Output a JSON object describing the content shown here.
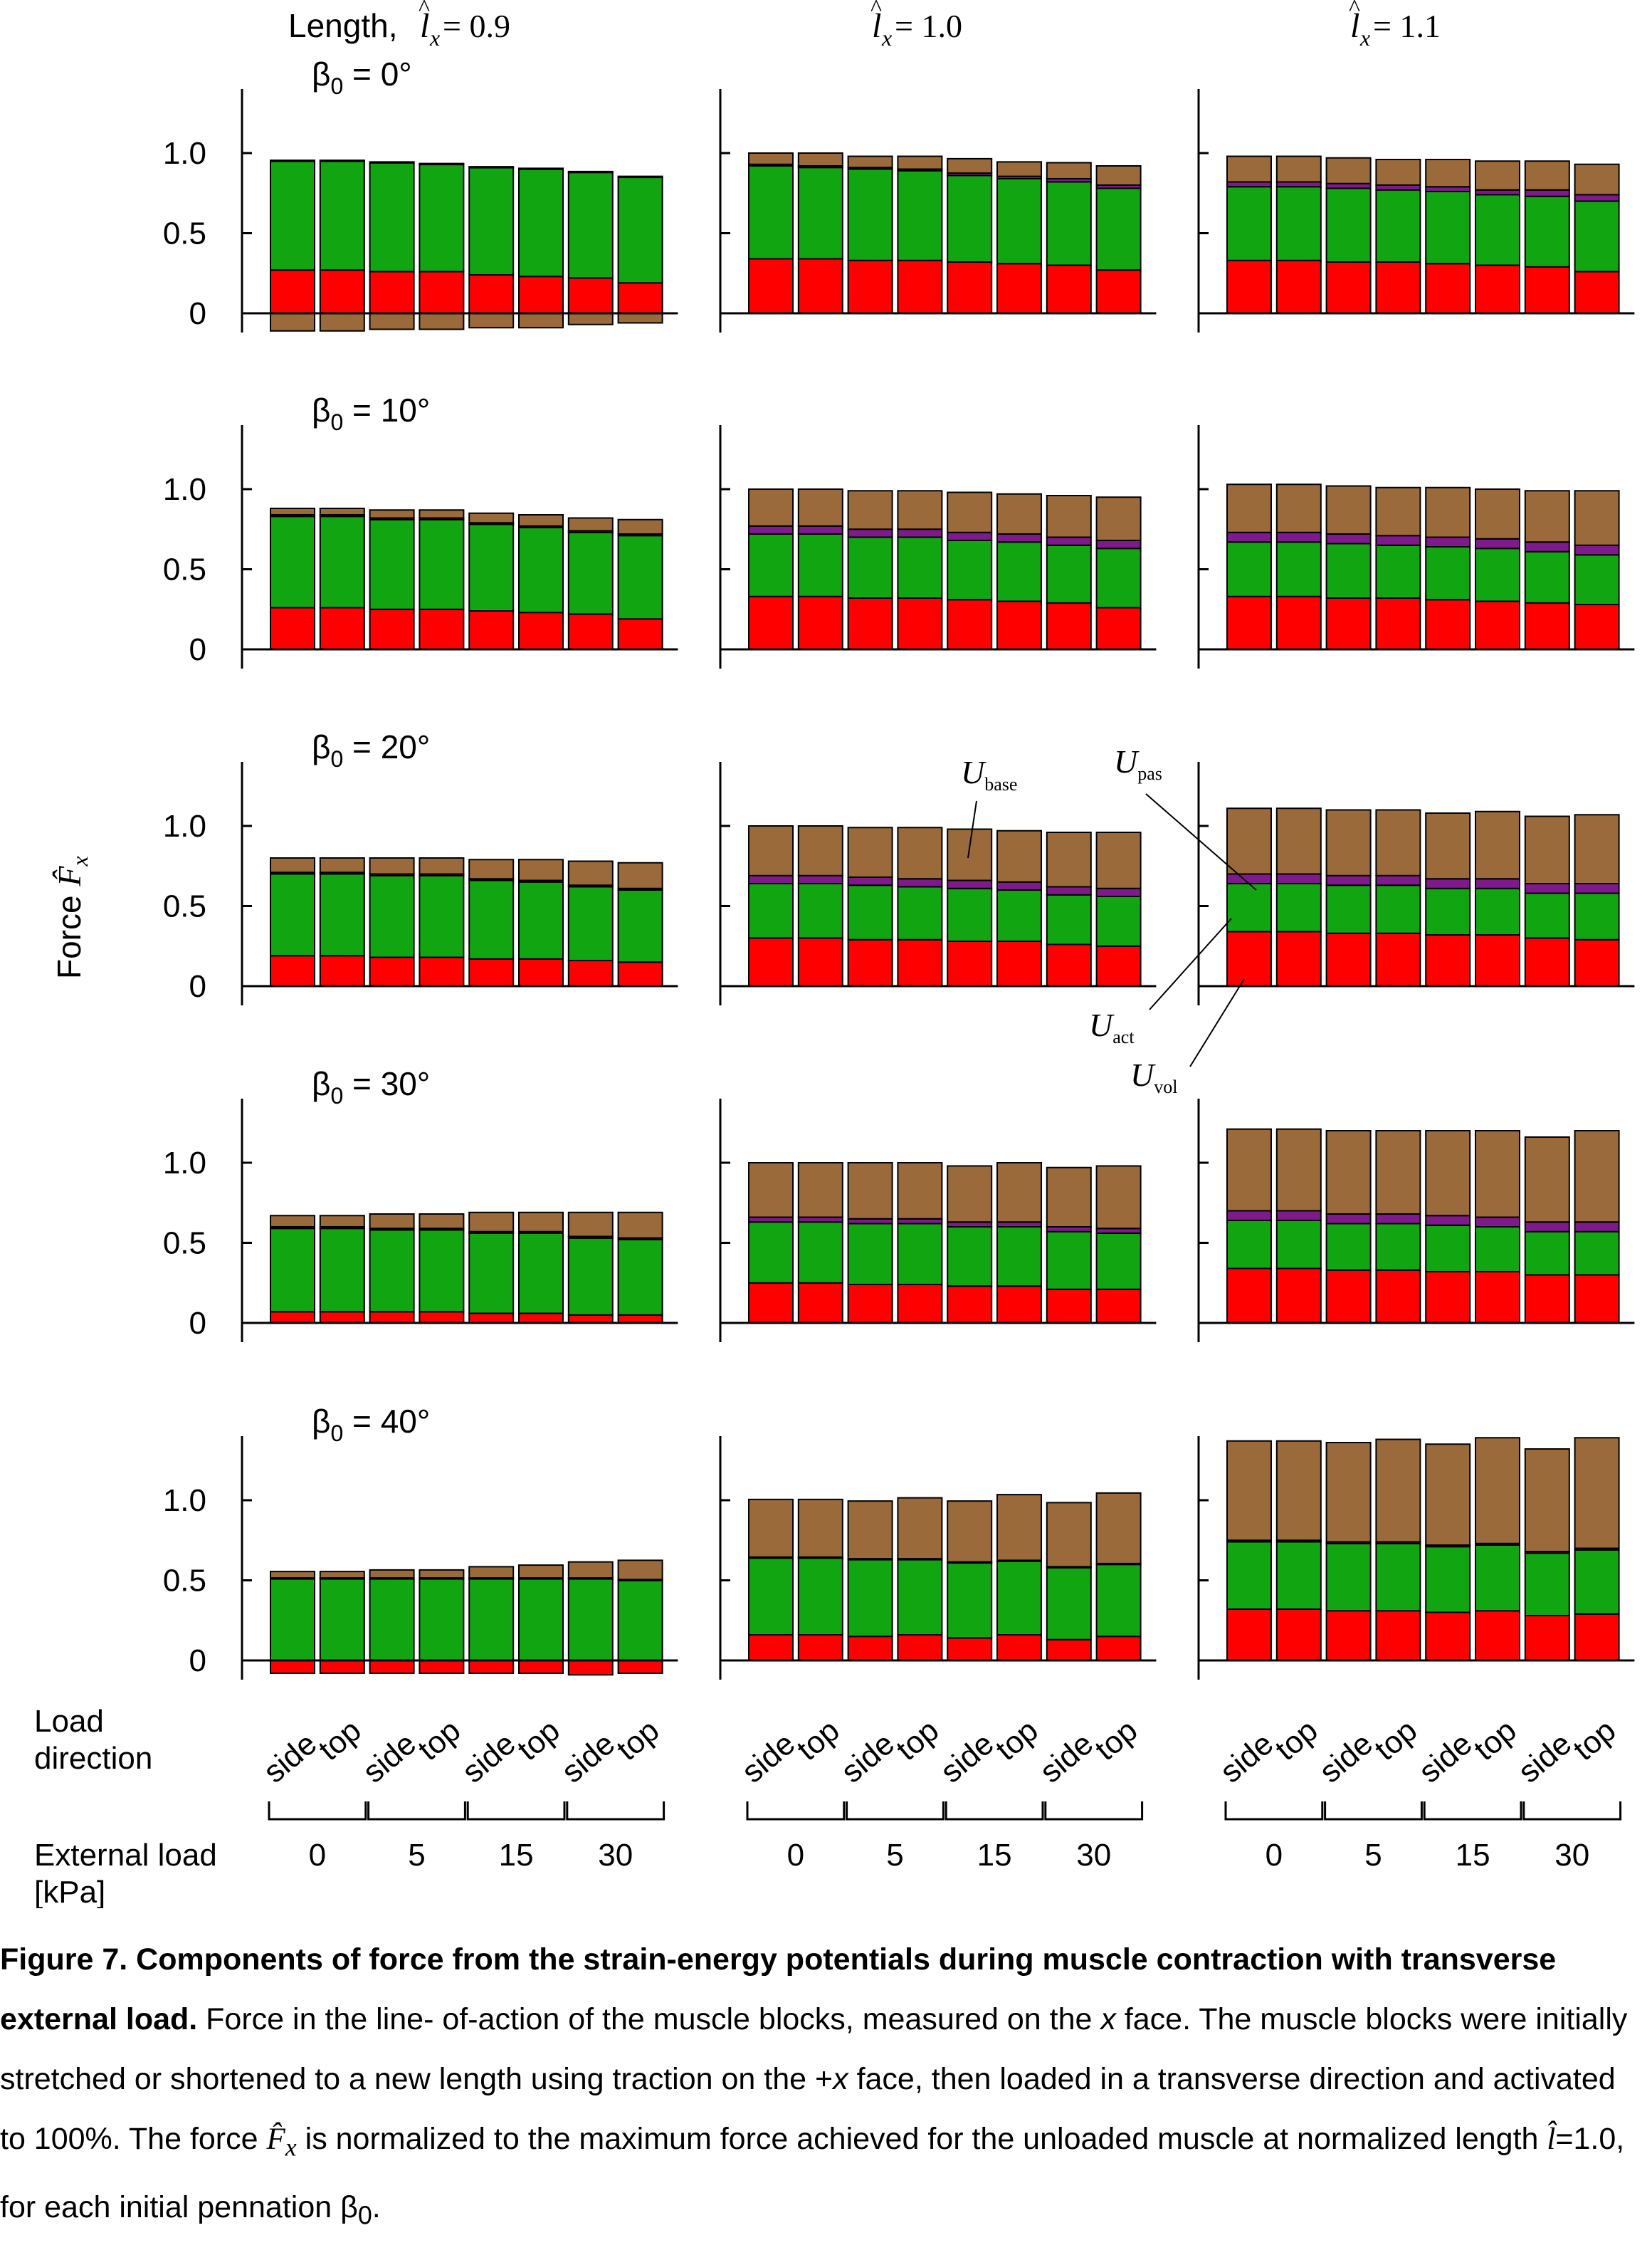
{
  "figure": {
    "column_headers": [
      {
        "prefix": "Length, ",
        "var": "l",
        "sub": "x",
        "value": " = 0.9"
      },
      {
        "prefix": "",
        "var": "l",
        "sub": "x",
        "value": " = 1.0"
      },
      {
        "prefix": "",
        "var": "l",
        "sub": "x",
        "value": " = 1.1"
      }
    ],
    "row_labels": [
      "β0 = 0°",
      "β0 = 10°",
      "β0 = 20°",
      "β0 = 30°",
      "β0 = 40°"
    ],
    "y_axis_label": "Force F̂x",
    "y_tick_labels": [
      "0",
      "0.5",
      "1.0"
    ],
    "load_direction_label": [
      "Load",
      "direction"
    ],
    "external_load_label": [
      "External load",
      "[kPa]"
    ],
    "bar_direction_labels": [
      "side",
      "top"
    ],
    "load_group_labels": [
      "0",
      "5",
      "15",
      "30"
    ],
    "annotations": [
      {
        "name": "U",
        "sub": "base"
      },
      {
        "name": "U",
        "sub": "pas"
      },
      {
        "name": "U",
        "sub": "act"
      },
      {
        "name": "U",
        "sub": "vol"
      }
    ]
  },
  "colors": {
    "vol": "#ff0000",
    "act": "#11a611",
    "pas": "#7f1a8c",
    "base": "#9a6a3b",
    "outline": "#000000"
  },
  "chart_data": {
    "type": "bar",
    "stacked": true,
    "ylim": [
      -0.1,
      1.4
    ],
    "yticks": [
      0,
      0.5,
      1.0
    ],
    "series_order": [
      "vol",
      "act",
      "pas",
      "base"
    ],
    "series": [
      {
        "key": "vol",
        "name": "Uvol"
      },
      {
        "key": "act",
        "name": "Uact"
      },
      {
        "key": "pas",
        "name": "Upas"
      },
      {
        "key": "base",
        "name": "Ubase"
      }
    ],
    "categories": [
      "0 side",
      "0 top",
      "5 side",
      "5 top",
      "15 side",
      "15 top",
      "30 side",
      "30 top"
    ],
    "panels": [
      {
        "row": "β0 = 0°",
        "col": "l = 0.9",
        "vol": [
          0.27,
          0.27,
          0.26,
          0.26,
          0.24,
          0.23,
          0.22,
          0.19
        ],
        "act": [
          0.68,
          0.68,
          0.68,
          0.67,
          0.67,
          0.67,
          0.66,
          0.66
        ],
        "pas": [
          0.005,
          0.005,
          0.005,
          0.005,
          0.005,
          0.005,
          0.005,
          0.005
        ],
        "base": [
          -0.11,
          -0.11,
          -0.1,
          -0.1,
          -0.09,
          -0.09,
          -0.07,
          -0.06
        ]
      },
      {
        "row": "β0 = 0°",
        "col": "l = 1.0",
        "vol": [
          0.34,
          0.34,
          0.33,
          0.33,
          0.32,
          0.31,
          0.3,
          0.27
        ],
        "act": [
          0.58,
          0.57,
          0.57,
          0.56,
          0.54,
          0.53,
          0.52,
          0.51
        ],
        "pas": [
          0.01,
          0.01,
          0.01,
          0.01,
          0.015,
          0.015,
          0.02,
          0.02
        ],
        "base": [
          0.07,
          0.08,
          0.07,
          0.08,
          0.09,
          0.09,
          0.1,
          0.12
        ]
      },
      {
        "row": "β0 = 0°",
        "col": "l = 1.1",
        "vol": [
          0.33,
          0.33,
          0.32,
          0.32,
          0.31,
          0.3,
          0.29,
          0.26
        ],
        "act": [
          0.46,
          0.46,
          0.46,
          0.45,
          0.45,
          0.44,
          0.44,
          0.44
        ],
        "pas": [
          0.03,
          0.03,
          0.03,
          0.03,
          0.03,
          0.03,
          0.04,
          0.04
        ],
        "base": [
          0.16,
          0.16,
          0.16,
          0.16,
          0.17,
          0.18,
          0.18,
          0.19
        ]
      },
      {
        "row": "β0 = 10°",
        "col": "l = 0.9",
        "vol": [
          0.26,
          0.26,
          0.25,
          0.25,
          0.24,
          0.23,
          0.22,
          0.19
        ],
        "act": [
          0.57,
          0.57,
          0.56,
          0.56,
          0.54,
          0.53,
          0.51,
          0.52
        ],
        "pas": [
          0.01,
          0.01,
          0.01,
          0.01,
          0.01,
          0.01,
          0.01,
          0.01
        ],
        "base": [
          0.04,
          0.04,
          0.05,
          0.05,
          0.06,
          0.07,
          0.08,
          0.09
        ]
      },
      {
        "row": "β0 = 10°",
        "col": "l = 1.0",
        "vol": [
          0.33,
          0.33,
          0.32,
          0.32,
          0.31,
          0.3,
          0.29,
          0.26
        ],
        "act": [
          0.39,
          0.39,
          0.38,
          0.38,
          0.37,
          0.37,
          0.36,
          0.37
        ],
        "pas": [
          0.05,
          0.05,
          0.05,
          0.05,
          0.05,
          0.05,
          0.05,
          0.05
        ],
        "base": [
          0.23,
          0.23,
          0.24,
          0.24,
          0.25,
          0.25,
          0.26,
          0.27
        ]
      },
      {
        "row": "β0 = 10°",
        "col": "l = 1.1",
        "vol": [
          0.33,
          0.33,
          0.32,
          0.32,
          0.31,
          0.3,
          0.29,
          0.28
        ],
        "act": [
          0.34,
          0.34,
          0.34,
          0.33,
          0.33,
          0.33,
          0.32,
          0.31
        ],
        "pas": [
          0.06,
          0.06,
          0.06,
          0.06,
          0.06,
          0.06,
          0.06,
          0.06
        ],
        "base": [
          0.3,
          0.3,
          0.3,
          0.3,
          0.31,
          0.31,
          0.32,
          0.34
        ]
      },
      {
        "row": "β0 = 20°",
        "col": "l = 0.9",
        "vol": [
          0.19,
          0.19,
          0.18,
          0.18,
          0.17,
          0.17,
          0.16,
          0.15
        ],
        "act": [
          0.51,
          0.51,
          0.51,
          0.51,
          0.49,
          0.48,
          0.46,
          0.45
        ],
        "pas": [
          0.01,
          0.01,
          0.01,
          0.01,
          0.01,
          0.01,
          0.01,
          0.01
        ],
        "base": [
          0.09,
          0.09,
          0.1,
          0.1,
          0.12,
          0.13,
          0.15,
          0.16
        ]
      },
      {
        "row": "β0 = 20°",
        "col": "l = 1.0",
        "vol": [
          0.3,
          0.3,
          0.29,
          0.29,
          0.28,
          0.28,
          0.26,
          0.25
        ],
        "act": [
          0.34,
          0.34,
          0.34,
          0.33,
          0.33,
          0.32,
          0.31,
          0.31
        ],
        "pas": [
          0.05,
          0.05,
          0.05,
          0.05,
          0.05,
          0.05,
          0.05,
          0.05
        ],
        "base": [
          0.31,
          0.31,
          0.31,
          0.32,
          0.32,
          0.32,
          0.34,
          0.35
        ]
      },
      {
        "row": "β0 = 20°",
        "col": "l = 1.1",
        "vol": [
          0.34,
          0.34,
          0.33,
          0.33,
          0.32,
          0.32,
          0.3,
          0.29
        ],
        "act": [
          0.3,
          0.3,
          0.3,
          0.3,
          0.29,
          0.29,
          0.28,
          0.29
        ],
        "pas": [
          0.06,
          0.06,
          0.06,
          0.06,
          0.06,
          0.06,
          0.06,
          0.06
        ],
        "base": [
          0.41,
          0.41,
          0.41,
          0.41,
          0.41,
          0.42,
          0.42,
          0.43
        ]
      },
      {
        "row": "β0 = 30°",
        "col": "l = 0.9",
        "vol": [
          0.07,
          0.07,
          0.07,
          0.07,
          0.06,
          0.06,
          0.05,
          0.05
        ],
        "act": [
          0.52,
          0.52,
          0.51,
          0.51,
          0.5,
          0.5,
          0.48,
          0.47
        ],
        "pas": [
          0.01,
          0.01,
          0.01,
          0.01,
          0.01,
          0.01,
          0.01,
          0.01
        ],
        "base": [
          0.07,
          0.07,
          0.09,
          0.09,
          0.12,
          0.12,
          0.15,
          0.16
        ]
      },
      {
        "row": "β0 = 30°",
        "col": "l = 1.0",
        "vol": [
          0.25,
          0.25,
          0.24,
          0.24,
          0.23,
          0.23,
          0.21,
          0.21
        ],
        "act": [
          0.38,
          0.38,
          0.38,
          0.38,
          0.37,
          0.37,
          0.36,
          0.35
        ],
        "pas": [
          0.03,
          0.03,
          0.03,
          0.03,
          0.03,
          0.03,
          0.03,
          0.03
        ],
        "base": [
          0.34,
          0.34,
          0.35,
          0.35,
          0.35,
          0.37,
          0.37,
          0.39
        ]
      },
      {
        "row": "β0 = 30°",
        "col": "l = 1.1",
        "vol": [
          0.34,
          0.34,
          0.33,
          0.33,
          0.32,
          0.32,
          0.3,
          0.3
        ],
        "act": [
          0.3,
          0.3,
          0.29,
          0.29,
          0.29,
          0.28,
          0.27,
          0.27
        ],
        "pas": [
          0.06,
          0.06,
          0.06,
          0.06,
          0.06,
          0.06,
          0.06,
          0.06
        ],
        "base": [
          0.51,
          0.51,
          0.52,
          0.52,
          0.53,
          0.54,
          0.53,
          0.57
        ]
      },
      {
        "row": "β0 = 40°",
        "col": "l = 0.9",
        "vol": [
          -0.08,
          -0.08,
          -0.08,
          -0.08,
          -0.08,
          -0.08,
          -0.09,
          -0.08
        ],
        "act": [
          0.51,
          0.51,
          0.51,
          0.51,
          0.51,
          0.51,
          0.51,
          0.5
        ],
        "pas": [
          0.005,
          0.005,
          0.005,
          0.005,
          0.005,
          0.005,
          0.005,
          0.005
        ],
        "base": [
          0.04,
          0.04,
          0.05,
          0.05,
          0.07,
          0.08,
          0.1,
          0.12
        ]
      },
      {
        "row": "β0 = 40°",
        "col": "l = 1.0",
        "vol": [
          0.16,
          0.16,
          0.15,
          0.16,
          0.14,
          0.16,
          0.13,
          0.15
        ],
        "act": [
          0.48,
          0.48,
          0.48,
          0.47,
          0.47,
          0.46,
          0.45,
          0.45
        ],
        "pas": [
          0.005,
          0.005,
          0.005,
          0.005,
          0.005,
          0.005,
          0.005,
          0.005
        ],
        "base": [
          0.36,
          0.36,
          0.36,
          0.38,
          0.38,
          0.41,
          0.4,
          0.44
        ]
      },
      {
        "row": "β0 = 40°",
        "col": "l = 1.1",
        "vol": [
          0.32,
          0.32,
          0.31,
          0.31,
          0.3,
          0.31,
          0.28,
          0.29
        ],
        "act": [
          0.42,
          0.42,
          0.42,
          0.42,
          0.41,
          0.41,
          0.39,
          0.4
        ],
        "pas": [
          0.01,
          0.01,
          0.01,
          0.01,
          0.01,
          0.01,
          0.01,
          0.01
        ],
        "base": [
          0.62,
          0.62,
          0.62,
          0.64,
          0.63,
          0.66,
          0.64,
          0.69
        ]
      }
    ]
  },
  "caption": {
    "title": "Figure 7. Components of force from the strain-energy potentials during muscle contraction with transverse external load.",
    "body_1": " Force in the line- of-action of the muscle blocks, measured on the ",
    "body_x": "x",
    "body_2": " face. The muscle blocks were initially stretched or shortened to a new length using traction on the +",
    "body_x2": "x",
    "body_3": " face, then loaded in a transverse direction and  activated to 100%. The force ",
    "body_F": "F̂",
    "body_Fsub": "x",
    "body_4": " is normalized to the maximum force achieved for the unloaded muscle at normalized length ",
    "body_l": "l̂",
    "body_5": "=1.0, for each initial pennation β",
    "body_6": "0",
    "body_7": "."
  }
}
